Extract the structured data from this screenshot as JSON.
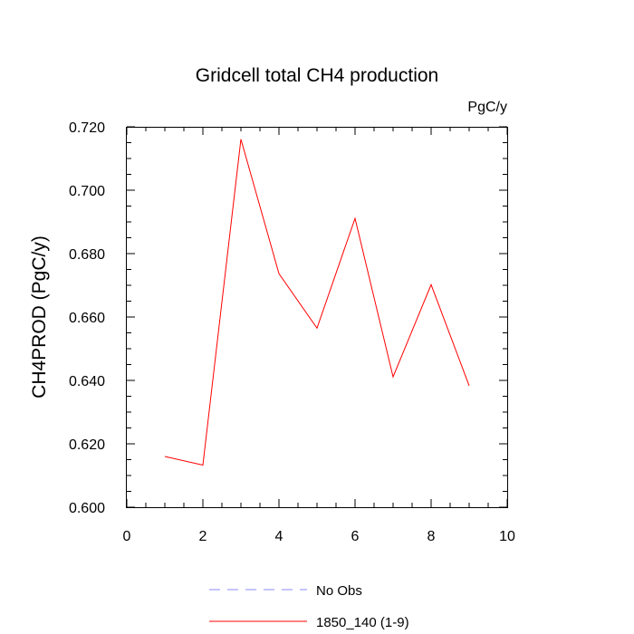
{
  "chart_data": {
    "type": "line",
    "title": "Gridcell total CH4 production",
    "units": "PgC/y",
    "xlabel": "",
    "ylabel": "CH4PROD  (PgC/y)",
    "xlim": [
      0,
      10
    ],
    "ylim": [
      0.6,
      0.72
    ],
    "xticks": [
      0,
      2,
      4,
      6,
      8,
      10
    ],
    "xtick_labels": [
      "0",
      "2",
      "4",
      "6",
      "8",
      "10"
    ],
    "yticks": [
      0.6,
      0.62,
      0.64,
      0.66,
      0.68,
      0.7,
      0.72
    ],
    "ytick_labels": [
      "0.600",
      "0.620",
      "0.640",
      "0.660",
      "0.680",
      "0.700",
      "0.720"
    ],
    "grid": false,
    "legend_position": "bottom",
    "series": [
      {
        "name": "1850_140 (1-9)",
        "color": "#ff0000",
        "style": "solid",
        "x": [
          1,
          2,
          3,
          4,
          5,
          6,
          7,
          8,
          9
        ],
        "y": [
          0.616,
          0.6133,
          0.7161,
          0.6737,
          0.6565,
          0.6911,
          0.6411,
          0.6702,
          0.6383
        ]
      }
    ],
    "legend": [
      {
        "label": "No Obs",
        "color": "#8888ff",
        "style": "dashed"
      },
      {
        "label": "1850_140 (1-9)",
        "color": "#ff0000",
        "style": "solid"
      }
    ]
  }
}
